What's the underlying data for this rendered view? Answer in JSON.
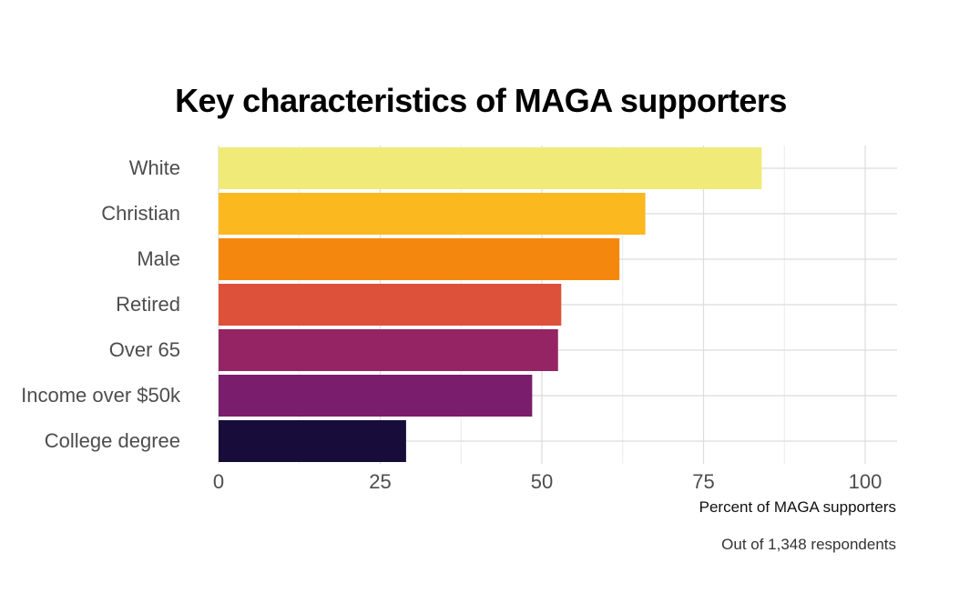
{
  "chart_data": {
    "type": "bar",
    "orientation": "horizontal",
    "title": "Key characteristics of MAGA supporters",
    "xlabel": "Percent of MAGA supporters",
    "caption": "Out of 1,348 respondents",
    "categories": [
      "White",
      "Christian",
      "Male",
      "Retired",
      "Over 65",
      "Income over $50k",
      "College degree"
    ],
    "values": [
      84,
      66,
      62,
      53,
      52.5,
      48.5,
      29
    ],
    "colors": [
      "#F0EB78",
      "#FBB81F",
      "#F4880E",
      "#DD513A",
      "#952465",
      "#7A1D6D",
      "#170C3A"
    ],
    "xlim": [
      0,
      105
    ],
    "x_ticks": [
      0,
      25,
      50,
      75,
      100
    ],
    "x_tick_labels": [
      "0",
      "25",
      "50",
      "75",
      "100"
    ],
    "grid": true
  }
}
